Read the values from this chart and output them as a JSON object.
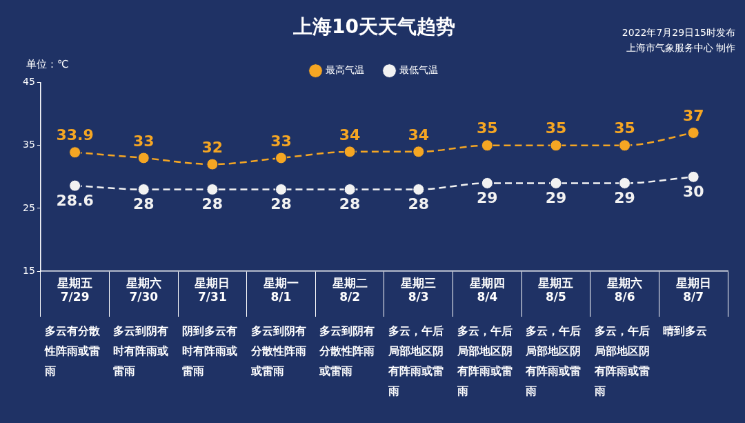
{
  "chart_data": {
    "type": "line",
    "title": "上海10天天气趋势",
    "ylabel": "单位：℃",
    "categories": [
      "星期五\n7/29",
      "星期六\n7/30",
      "星期日\n7/31",
      "星期一\n8/1",
      "星期二\n8/2",
      "星期三\n8/3",
      "星期四\n8/4",
      "星期五\n8/5",
      "星期六\n8/6",
      "星期日\n8/7"
    ],
    "series": [
      {
        "name": "最高气温",
        "color": "#f5a623",
        "values": [
          33.9,
          33,
          32,
          33,
          34,
          34,
          35,
          35,
          35,
          37
        ]
      },
      {
        "name": "最低气温",
        "color": "#f2f2f2",
        "values": [
          28.6,
          28,
          28,
          28,
          28,
          28,
          29,
          29,
          29,
          30
        ]
      }
    ],
    "ylim": [
      15,
      45
    ],
    "yticks": [
      15,
      25,
      35,
      45
    ],
    "grid": false,
    "legend": "top",
    "marker": "circle",
    "line_style": "dashed",
    "data_labels": true,
    "annotations": [
      "2022年7月29日15时发布",
      "上海市气象服务中心 制作",
      "多云有分散性阵雨或雷雨",
      "多云到阴有时有阵雨或雷雨",
      "阴到多云有时有阵雨或雷雨",
      "多云到阴有分散性阵雨或雷雨",
      "多云到阴有分散性阵雨或雷雨",
      "多云，午后局部地区阴有阵雨或雷雨",
      "多云，午后局部地区阴有阵雨或雷雨",
      "多云，午后局部地区阴有阵雨或雷雨",
      "多云，午后局部地区阴有阵雨或雷雨",
      "晴到多云"
    ]
  }
}
